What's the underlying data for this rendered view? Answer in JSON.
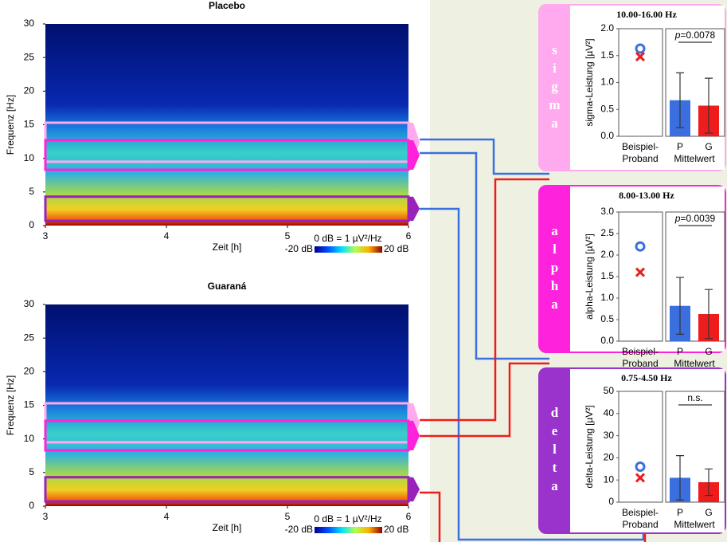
{
  "chart_data": [
    {
      "type": "spectrogram",
      "title": "Placebo",
      "xlabel": "Zeit [h]",
      "ylabel": "Frequenz [Hz]",
      "xlim": [
        3,
        6
      ],
      "xticks": [
        3,
        4,
        5,
        6
      ],
      "ylim": [
        0,
        30
      ],
      "yticks": [
        0,
        5,
        10,
        15,
        20,
        25,
        30
      ],
      "colorbar": {
        "label": "0 dB = 1 µV²/Hz",
        "min_label": "-20 dB",
        "max_label": "20 dB"
      },
      "bands": [
        {
          "range": [
            9.5,
            15.3
          ],
          "color": "#ffaaee"
        },
        {
          "range": [
            8.3,
            12.7
          ],
          "color": "#ff22dd"
        },
        {
          "range": [
            0.7,
            4.3
          ],
          "color": "#9922bb"
        }
      ]
    },
    {
      "type": "spectrogram",
      "title": "Guaraná",
      "xlabel": "Zeit [h]",
      "ylabel": "Frequenz [Hz]",
      "xlim": [
        3,
        6
      ],
      "xticks": [
        3,
        4,
        5,
        6
      ],
      "ylim": [
        0,
        30
      ],
      "yticks": [
        0,
        5,
        10,
        15,
        20,
        25,
        30
      ],
      "colorbar": {
        "label": "0 dB = 1 µV²/Hz",
        "min_label": "-20 dB",
        "max_label": "20 dB"
      },
      "bands": [
        {
          "range": [
            9.5,
            15.3
          ],
          "color": "#ffaaee"
        },
        {
          "range": [
            8.3,
            12.7
          ],
          "color": "#ff22dd"
        },
        {
          "range": [
            0.7,
            4.3
          ],
          "color": "#9922bb"
        }
      ]
    },
    {
      "type": "bar",
      "title": "10.00-16.00 Hz",
      "side_label": "sigma",
      "color": "#ffaaee",
      "ylabel": "sigma-Leistung [µV²]",
      "ylim": [
        0,
        2
      ],
      "yticks": [
        {
          "value": 0,
          "label": "0.0"
        },
        0.5,
        {
          "value": 1,
          "label": "1.0"
        },
        1.5,
        {
          "value": 2,
          "label": "2.0"
        }
      ],
      "example_label": [
        "Beispiel-",
        "Proband"
      ],
      "example": [
        1.63,
        1.48
      ],
      "group_label": "Mittelwert",
      "categories": [
        "P",
        "G"
      ],
      "values": [
        0.67,
        0.57
      ],
      "errors": [
        0.51,
        0.51
      ],
      "bar_colors": [
        "#3b6fe0",
        "#ee1c1c"
      ],
      "significance": [
        "p",
        "=0.0078"
      ]
    },
    {
      "type": "bar",
      "title": "8.00-13.00 Hz",
      "side_label": "alpha",
      "color": "#ff22dd",
      "ylabel": "alpha-Leistung [µV²]",
      "ylim": [
        0,
        3
      ],
      "yticks": [
        {
          "value": 0,
          "label": "0.0"
        },
        0.5,
        {
          "value": 1,
          "label": "1.0"
        },
        1.5,
        {
          "value": 2,
          "label": "2.0"
        },
        2.5,
        {
          "value": 3,
          "label": "3.0"
        }
      ],
      "example_label": [
        "Beispiel-",
        "Proband"
      ],
      "example": [
        2.2,
        1.6
      ],
      "group_label": "Mittelwert",
      "categories": [
        "P",
        "G"
      ],
      "values": [
        0.82,
        0.63
      ],
      "errors": [
        0.66,
        0.57
      ],
      "bar_colors": [
        "#3b6fe0",
        "#ee1c1c"
      ],
      "significance": [
        "p",
        "=0.0039"
      ]
    },
    {
      "type": "bar",
      "title": "0.75-4.50 Hz",
      "side_label": "delta",
      "color": "#9933cc",
      "ylabel": "delta-Leistung [µV²]",
      "ylim": [
        0,
        50
      ],
      "yticks": [
        0,
        10,
        20,
        30,
        40,
        50
      ],
      "example_label": [
        "Beispiel-",
        "Proband"
      ],
      "example": [
        16,
        11
      ],
      "group_label": "Mittelwert",
      "categories": [
        "P",
        "G"
      ],
      "values": [
        11,
        9
      ],
      "errors": [
        10,
        6
      ],
      "bar_colors": [
        "#3b6fe0",
        "#ee1c1c"
      ],
      "significance": [
        "n.s."
      ]
    }
  ]
}
